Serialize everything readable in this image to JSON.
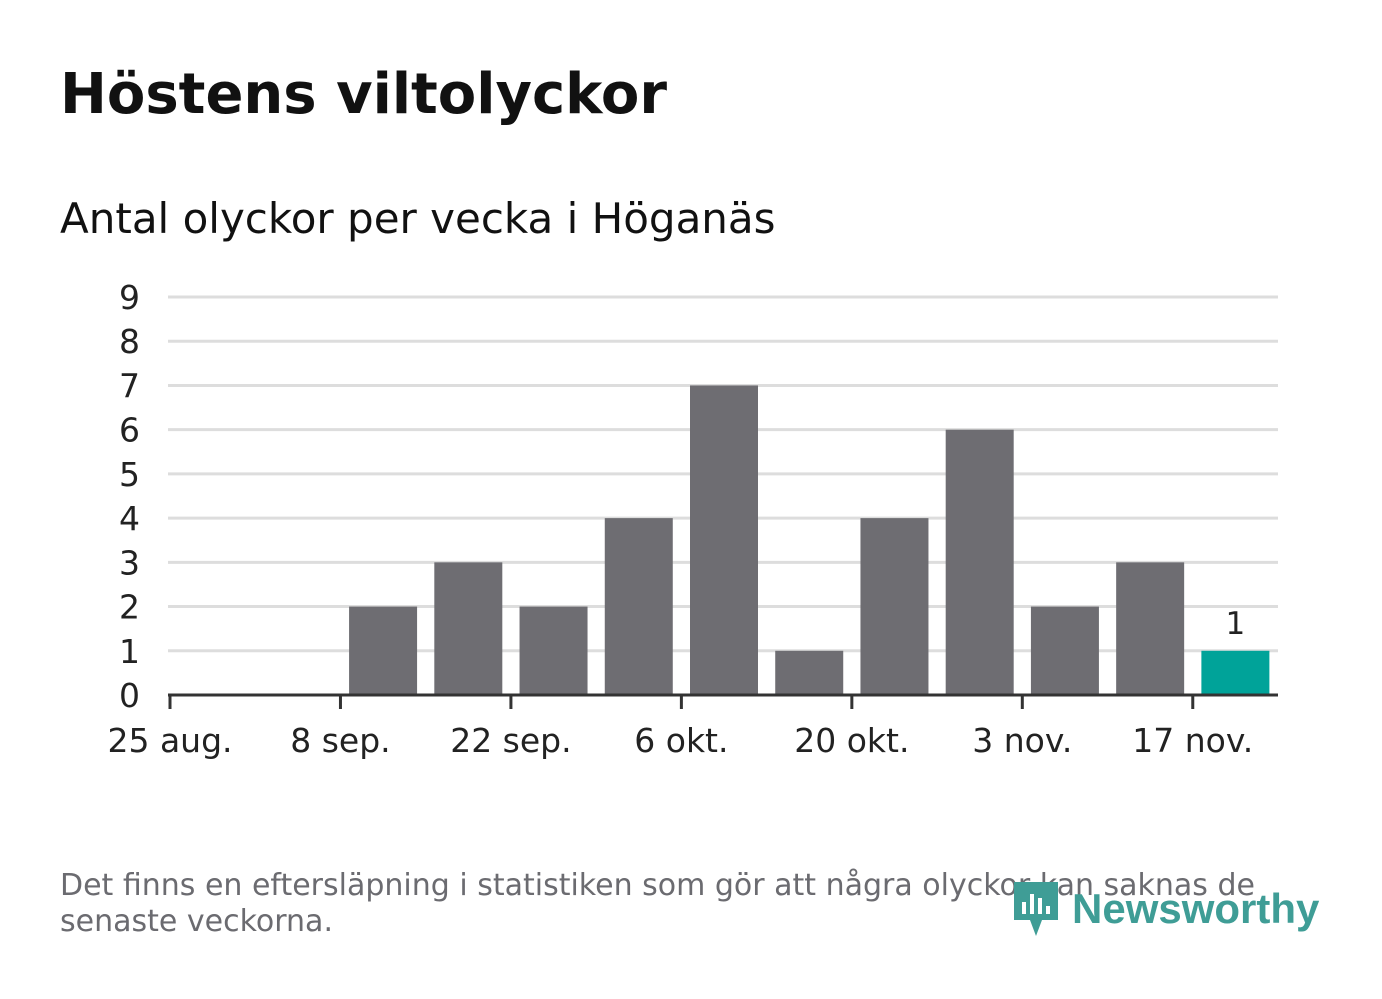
{
  "title": "Höstens viltolyckor",
  "subtitle": "Antal olyckor per vecka i Höganäs",
  "footnote": "Det finns en eftersläpning i statistiken som gör att några olyckor kan saknas de senaste veckorna.",
  "brand": {
    "name": "Newsworthy",
    "color": "#3f9d96",
    "icon": "newsworthy-logo-icon"
  },
  "colors": {
    "bar": "#6e6d72",
    "highlight": "#00a399",
    "grid": "#dddddd",
    "axis": "#333333"
  },
  "chart_data": {
    "type": "bar",
    "title": "Höstens viltolyckor",
    "subtitle": "Antal olyckor per vecka i Höganäs",
    "xlabel": "",
    "ylabel": "",
    "ylim": [
      0,
      9
    ],
    "yticks": [
      "0",
      "1",
      "2",
      "3",
      "4",
      "5",
      "6",
      "7",
      "8",
      "9"
    ],
    "xticks": [
      "25 aug.",
      "8 sep.",
      "22 sep.",
      "6 okt.",
      "20 okt.",
      "3 nov.",
      "17 nov."
    ],
    "categories": [
      "25 aug.",
      "1 sep.",
      "8 sep.",
      "15 sep.",
      "22 sep.",
      "29 sep.",
      "6 okt.",
      "13 okt.",
      "20 okt.",
      "27 okt.",
      "3 nov.",
      "10 nov.",
      "17 nov."
    ],
    "values": [
      0,
      0,
      2,
      3,
      2,
      4,
      7,
      1,
      4,
      6,
      2,
      3,
      1
    ],
    "highlight_index": 12,
    "data_labels": [
      {
        "index": 12,
        "text": "1"
      }
    ],
    "grid": true,
    "legend": "none"
  }
}
